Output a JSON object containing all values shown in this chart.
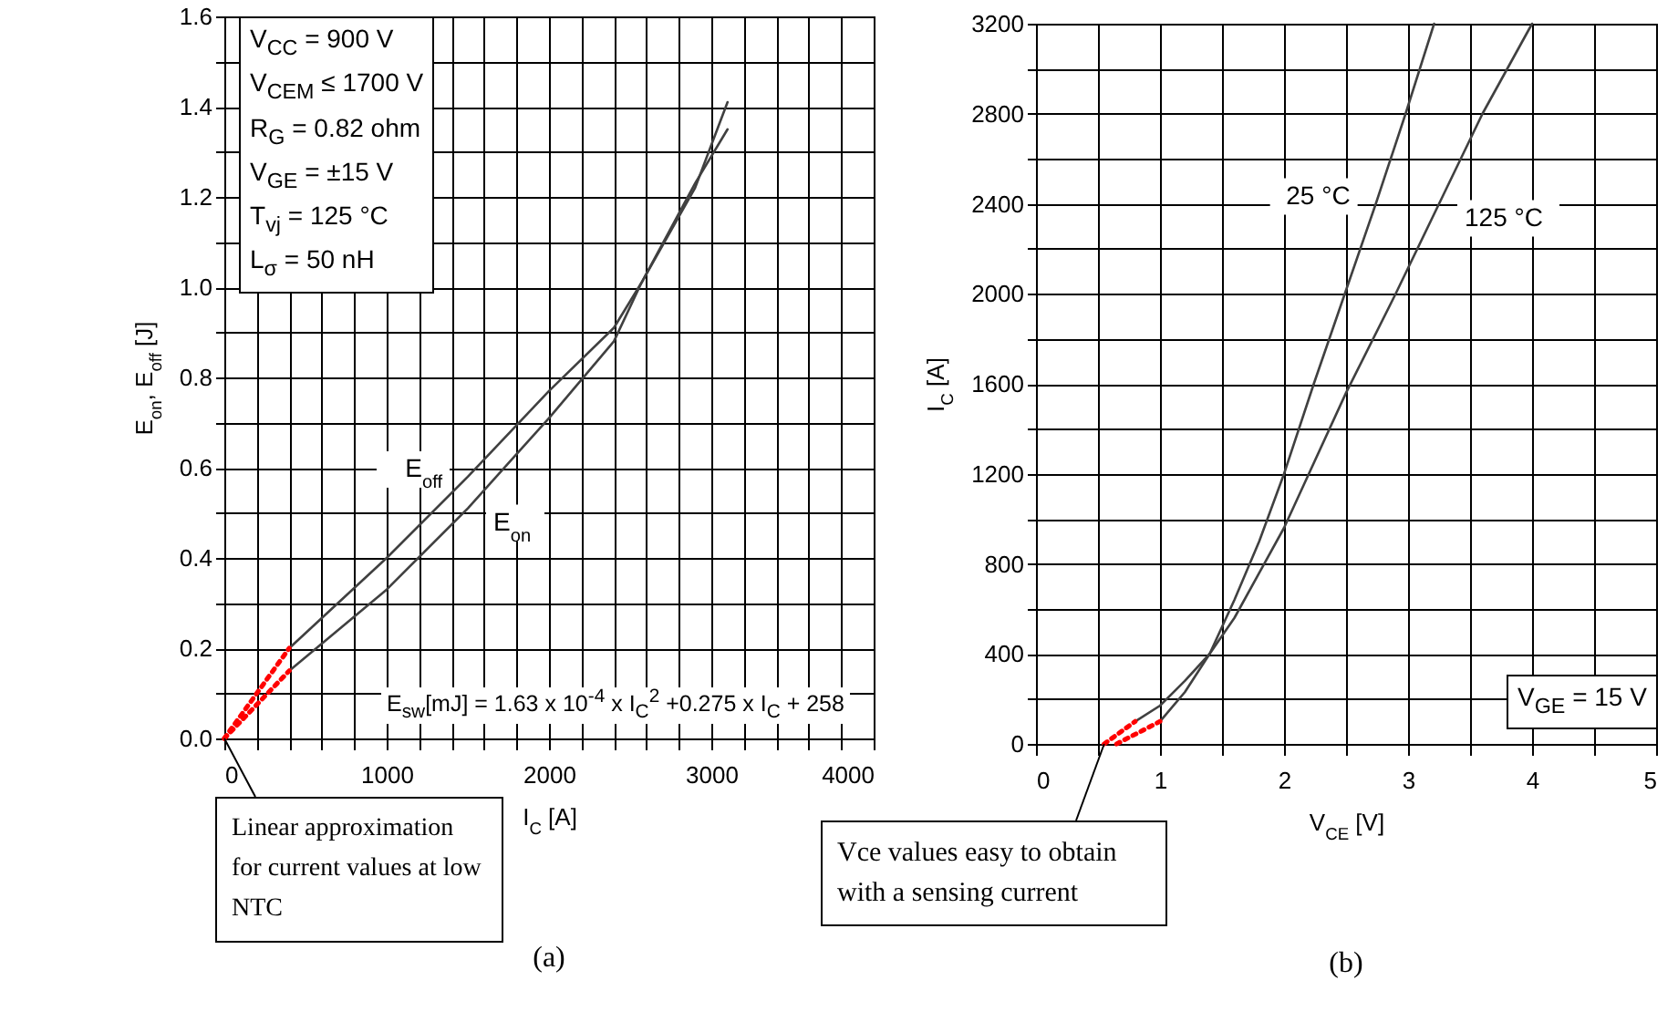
{
  "chart_data": [
    {
      "type": "line",
      "title": "(a)",
      "xlabel": "I$_{C}$ [A]",
      "ylabel": "E$_{on}$, E$_{off}$ [J]",
      "xlim": [
        0,
        4000
      ],
      "ylim": [
        0,
        1.6
      ],
      "xticks": [
        0,
        {
          "value": 200,
          "label": null
        },
        {
          "value": 400,
          "label": null
        },
        {
          "value": 600,
          "label": null
        },
        {
          "value": 800,
          "label": null
        },
        1000,
        {
          "value": 1200,
          "label": null
        },
        {
          "value": 1400,
          "label": null
        },
        {
          "value": 1600,
          "label": null
        },
        {
          "value": 1800,
          "label": null
        },
        2000,
        {
          "value": 2200,
          "label": null
        },
        {
          "value": 2400,
          "label": null
        },
        {
          "value": 2600,
          "label": null
        },
        {
          "value": 2800,
          "label": null
        },
        3000,
        {
          "value": 3200,
          "label": null
        },
        {
          "value": 3400,
          "label": null
        },
        {
          "value": 3600,
          "label": null
        },
        {
          "value": 3800,
          "label": null
        },
        4000
      ],
      "yticks": [
        {
          "value": 0,
          "label": "0.0"
        },
        {
          "value": 0.1,
          "label": null
        },
        0.2,
        {
          "value": 0.3,
          "label": null
        },
        0.4,
        {
          "value": 0.5,
          "label": null
        },
        0.6,
        {
          "value": 0.7,
          "label": null
        },
        0.8,
        {
          "value": 0.9,
          "label": null
        },
        {
          "value": 1,
          "label": "1.0"
        },
        {
          "value": 1.1,
          "label": null
        },
        1.2,
        {
          "value": 1.3,
          "label": null
        },
        1.4,
        {
          "value": 1.5,
          "label": null
        },
        1.6
      ],
      "grid": true,
      "series": [
        {
          "name": "E$_{off}$",
          "color": "#404040",
          "x": [
            400,
            1000,
            1500,
            2000,
            2400,
            2570,
            2900,
            3100
          ],
          "values": [
            0.2,
            0.4,
            0.58,
            0.77,
            0.91,
            1.01,
            1.22,
            1.41
          ]
        },
        {
          "name": "E$_{on}$",
          "color": "#404040",
          "x": [
            400,
            1000,
            1500,
            2000,
            2400,
            2570,
            2900,
            3100
          ],
          "values": [
            0.15,
            0.33,
            0.51,
            0.71,
            0.88,
            1.01,
            1.23,
            1.35
          ]
        },
        {
          "color": "#ff0000",
          "line_style": "dotted",
          "x": [
            0,
            400
          ],
          "values": [
            0,
            0.2
          ]
        },
        {
          "color": "#ff0000",
          "line_style": "dotted",
          "x": [
            0,
            400
          ],
          "values": [
            0,
            0.15
          ]
        }
      ],
      "annotations": [
        "V$_{CC}$ = 900 V",
        "V$_{CEM}$ ≤ 1700 V",
        "R$_{G}$ = 0.82 ohm",
        "V$_{GE}$ = ±15 V",
        "T$_{vj}$ = 125 °C",
        "L$_{σ}$ = 50 nH",
        "E$_{sw}$[mJ] = 1.63 x 10$^{-4}$ x I$_{C}$$^{2}$ +0.275 x I$_{C}$ + 258",
        {
          "text": "Linear approximation for current values at low NTC",
          "x": 0,
          "y": 0
        }
      ]
    },
    {
      "type": "line",
      "title": "(b)",
      "xlabel": "V$_{CE}$ [V]",
      "ylabel": "I$_{C}$ [A]",
      "xlim": [
        0,
        5
      ],
      "ylim": [
        0,
        3200
      ],
      "xticks": [
        0,
        {
          "value": 0.5,
          "label": null
        },
        1,
        {
          "value": 1.5,
          "label": null
        },
        2,
        {
          "value": 2.5,
          "label": null
        },
        3,
        {
          "value": 3.5,
          "label": null
        },
        4,
        {
          "value": 4.5,
          "label": null
        },
        5
      ],
      "yticks": [
        0,
        {
          "value": 200,
          "label": null
        },
        400,
        {
          "value": 600,
          "label": null
        },
        800,
        {
          "value": 1000,
          "label": null
        },
        1200,
        {
          "value": 1400,
          "label": null
        },
        1600,
        {
          "value": 1800,
          "label": null
        },
        2000,
        {
          "value": 2200,
          "label": null
        },
        2400,
        {
          "value": 2600,
          "label": null
        },
        2800,
        {
          "value": 3000,
          "label": null
        },
        3200
      ],
      "grid": true,
      "series": [
        {
          "name": "25 °C",
          "color": "#404040",
          "x": [
            1.0,
            1.2,
            1.4,
            1.6,
            1.8,
            2.0,
            2.24,
            2.49,
            2.74,
            2.98,
            3.21
          ],
          "values": [
            100,
            230,
            400,
            640,
            900,
            1200,
            1600,
            2000,
            2400,
            2800,
            3200
          ]
        },
        {
          "name": "125 °C",
          "color": "#404040",
          "x": [
            0.8,
            1.0,
            1.2,
            1.4,
            1.6,
            1.8,
            2.0,
            2.2,
            2.5,
            2.9,
            3.25,
            3.6,
            4.0
          ],
          "values": [
            100,
            170,
            280,
            400,
            560,
            760,
            960,
            1200,
            1560,
            2000,
            2400,
            2800,
            3200
          ]
        },
        {
          "color": "#ff0000",
          "line_style": "dotted",
          "x": [
            0.55,
            0.8
          ],
          "values": [
            0,
            100
          ]
        },
        {
          "color": "#ff0000",
          "line_style": "dotted",
          "x": [
            0.65,
            1.0
          ],
          "values": [
            0,
            100
          ]
        }
      ],
      "annotations": [
        "V$_{GE}$ = 15 V",
        {
          "text": "Vce values easy to obtain with a sensing current",
          "x": 0.55,
          "y": 0
        }
      ]
    }
  ]
}
